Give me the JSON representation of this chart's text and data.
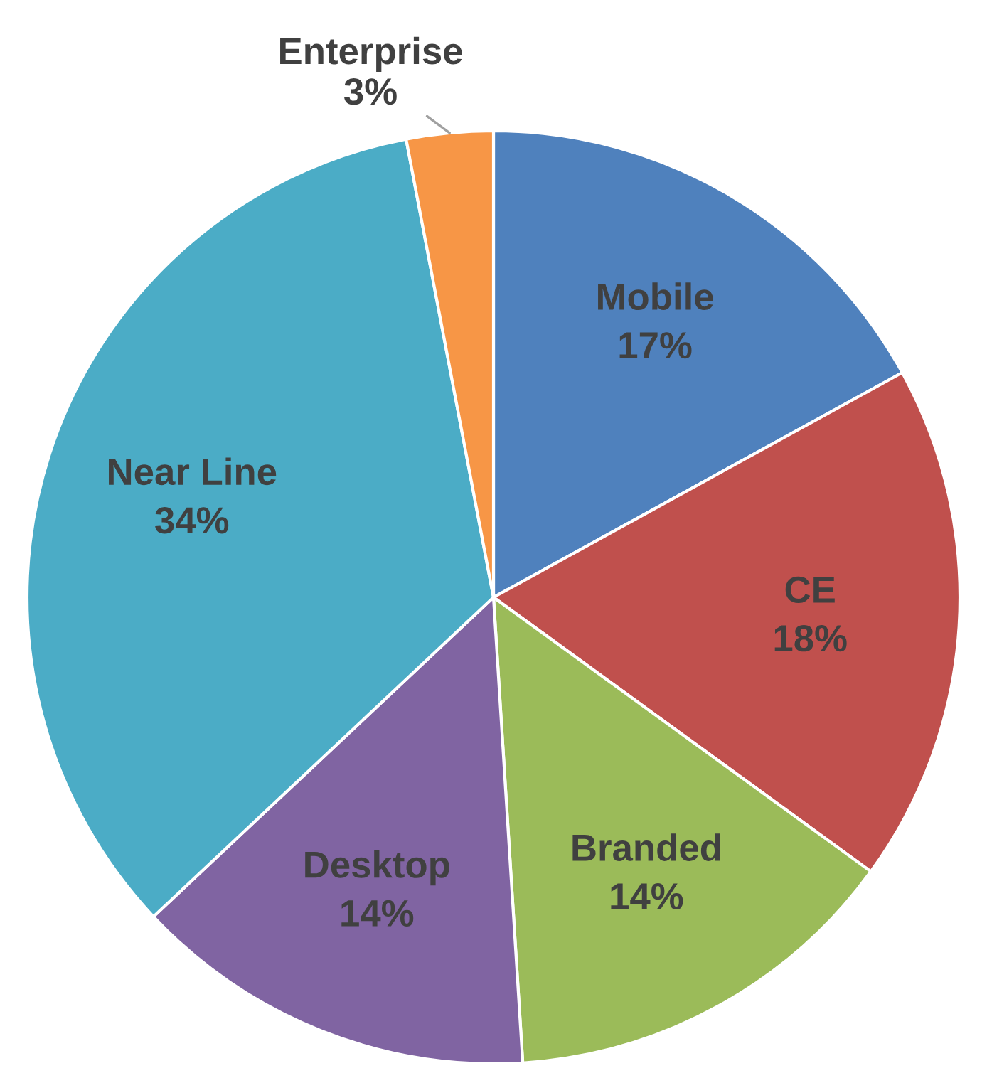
{
  "chart_data": {
    "type": "pie",
    "categories": [
      "Mobile",
      "CE",
      "Branded",
      "Desktop",
      "Near Line",
      "Enterprise"
    ],
    "values": [
      17,
      18,
      14,
      14,
      34,
      3
    ],
    "colors": [
      "#4f81bd",
      "#c0504d",
      "#9bbb59",
      "#8064a2",
      "#4bacc6",
      "#f79646"
    ],
    "value_labels": [
      "17%",
      "18%",
      "14%",
      "14%",
      "34%",
      "3%"
    ]
  }
}
